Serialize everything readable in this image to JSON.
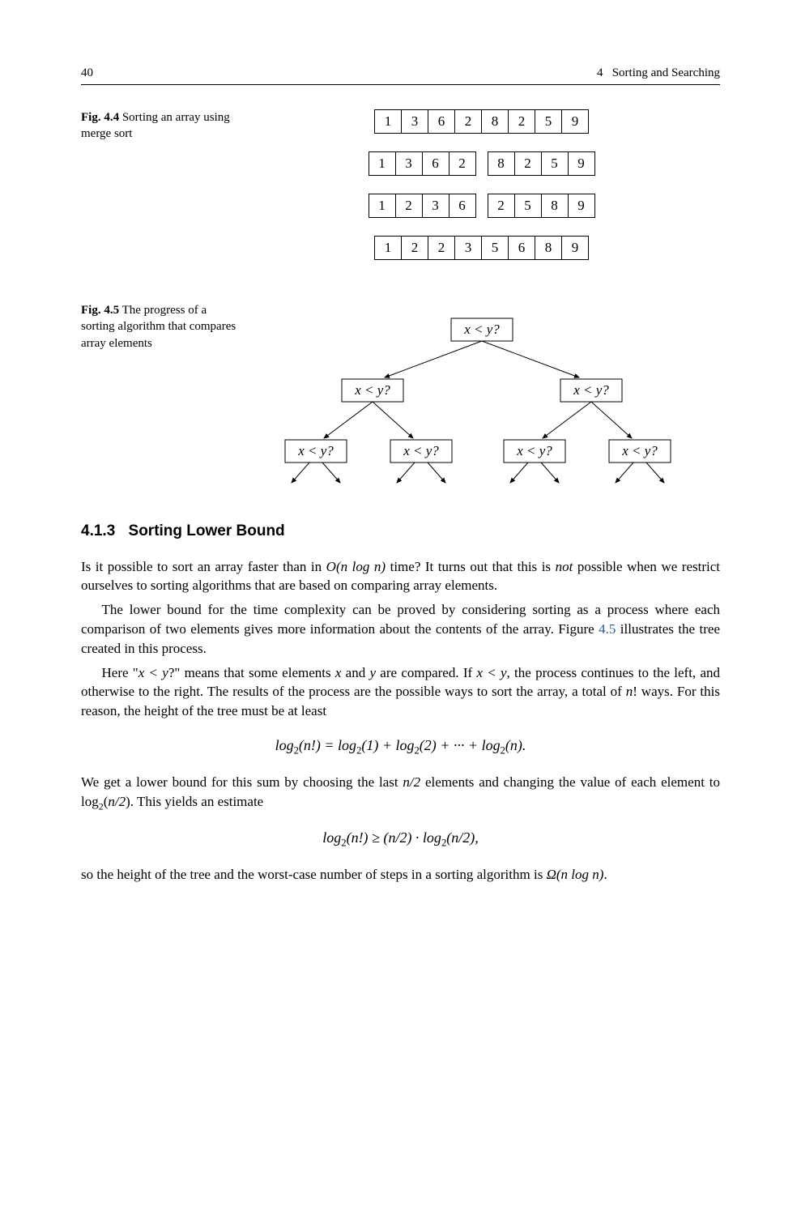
{
  "header": {
    "page_number": "40",
    "chapter_number": "4",
    "chapter_title": "Sorting and Searching"
  },
  "fig44": {
    "label": "Fig. 4.4",
    "caption": "Sorting an array using merge sort",
    "rows": [
      [
        [
          "1",
          "3",
          "6",
          "2",
          "8",
          "2",
          "5",
          "9"
        ]
      ],
      [
        [
          "1",
          "3",
          "6",
          "2"
        ],
        [
          "8",
          "2",
          "5",
          "9"
        ]
      ],
      [
        [
          "1",
          "2",
          "3",
          "6"
        ],
        [
          "2",
          "5",
          "8",
          "9"
        ]
      ],
      [
        [
          "1",
          "2",
          "2",
          "3",
          "5",
          "6",
          "8",
          "9"
        ]
      ]
    ]
  },
  "fig45": {
    "label": "Fig. 4.5",
    "caption": "The progress of a sorting algorithm that compares array elements",
    "node_label": "x < y?",
    "type": "tree",
    "levels": 3,
    "box_stroke": "#000000",
    "box_fill": "#ffffff",
    "arrow_stroke": "#000000",
    "font_size": 17,
    "font_style": "italic"
  },
  "section": {
    "number": "4.1.3",
    "title": "Sorting Lower Bound"
  },
  "body": {
    "p1a": "Is it possible to sort an array faster than in ",
    "p1_math": "O(n log n)",
    "p1b": " time? It turns out that this is ",
    "p1_not": "not",
    "p1c": " possible when we restrict ourselves to sorting algorithms that are based on comparing array elements.",
    "p2a": "The lower bound for the time complexity can be proved by considering sorting as a process where each comparison of two elements gives more information about the contents of the array. Figure ",
    "p2_link": "4.5",
    "p2b": " illustrates the tree created in this process.",
    "p3a": "Here \"",
    "p3_m1": "x < y",
    "p3b": "?\" means that some elements ",
    "p3_x": "x",
    "p3c": " and ",
    "p3_y": "y",
    "p3d": " are compared. If ",
    "p3_m2": "x < y",
    "p3e": ", the process continues to the left, and otherwise to the right. The results of the process are the possible ways to sort the array, a total of ",
    "p3_n": "n",
    "p3f": "! ways. For this reason, the height of the tree must be at least",
    "eq1": "log₂(n!) = log₂(1) + log₂(2) + ··· + log₂(n).",
    "p4a": "We get a lower bound for this sum by choosing the last ",
    "p4_m1": "n/2",
    "p4b": " elements and changing the value of each element to log",
    "p4_sub": "2",
    "p4c": "(",
    "p4_m2": "n/2",
    "p4d": "). This yields an estimate",
    "eq2": "log₂(n!) ≥ (n/2) · log₂(n/2),",
    "p5a": "so the height of the tree and the worst-case number of steps in a sorting algorithm is ",
    "p5_m": "Ω(n log n)",
    "p5b": "."
  }
}
